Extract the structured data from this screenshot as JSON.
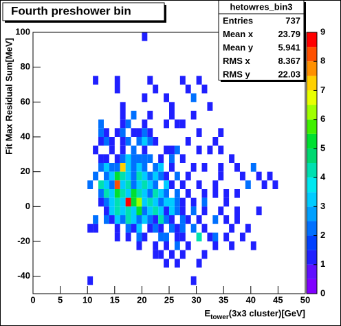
{
  "chart_data": {
    "type": "heatmap",
    "title": "Fourth preshower bin",
    "x_label": {
      "main": "E",
      "sub": "tower",
      "rest": "(3x3 cluster)[GeV]"
    },
    "y_label": "Fit Max Residual Sum[MeV]",
    "xlim": [
      0,
      50
    ],
    "ylim": [
      -50,
      100
    ],
    "zlim": [
      0,
      9
    ],
    "xticks": [
      0,
      5,
      10,
      15,
      20,
      25,
      30,
      35,
      40,
      45,
      50
    ],
    "yticks": [
      -40,
      -20,
      0,
      20,
      40,
      60,
      80,
      100
    ],
    "zticks": [
      0,
      1,
      2,
      3,
      4,
      5,
      6,
      7,
      8,
      9
    ],
    "bin_width_x": 1,
    "bin_width_y": 5,
    "palette": [
      "#8000ff",
      "#6010ff",
      "#2020ff",
      "#0040ff",
      "#0070ff",
      "#00a0ff",
      "#00ccff",
      "#00e8f0",
      "#00e0b0",
      "#00d870",
      "#00e030",
      "#40f000",
      "#a0ff00",
      "#e8ff00",
      "#ffd000",
      "#ff9000",
      "#ff5000",
      "#ff0000"
    ],
    "rows": [
      {
        "y": 95,
        "x": [
          20
        ],
        "values": [
          1
        ]
      },
      {
        "y": 70,
        "x": [
          11,
          15,
          21,
          27,
          30
        ],
        "values": [
          1,
          1,
          1,
          1,
          1
        ]
      },
      {
        "y": 65,
        "x": [
          15,
          22,
          28,
          31
        ],
        "values": [
          1,
          1,
          1,
          1
        ]
      },
      {
        "y": 60,
        "x": [
          20,
          24,
          29
        ],
        "values": [
          1,
          1,
          2
        ]
      },
      {
        "y": 55,
        "x": [
          16,
          25,
          32
        ],
        "values": [
          1,
          1,
          1
        ]
      },
      {
        "y": 50,
        "x": [
          16,
          18,
          21,
          25,
          29
        ],
        "values": [
          1,
          2,
          1,
          1,
          1
        ]
      },
      {
        "y": 45,
        "x": [
          12,
          16,
          17,
          20,
          24,
          26,
          27
        ],
        "values": [
          2,
          1,
          2,
          1,
          1,
          1,
          1
        ]
      },
      {
        "y": 40,
        "x": [
          12,
          13,
          15,
          16,
          18,
          19,
          20,
          21,
          30,
          34
        ],
        "values": [
          2,
          1,
          1,
          2,
          1,
          1,
          2,
          1,
          1,
          1
        ]
      },
      {
        "y": 35,
        "x": [
          12,
          13,
          14,
          16,
          17,
          19,
          20,
          21,
          22,
          28,
          33
        ],
        "values": [
          1,
          2,
          1,
          1,
          2,
          2,
          3,
          2,
          1,
          1,
          1
        ]
      },
      {
        "y": 30,
        "x": [
          11,
          14,
          16,
          18,
          20,
          24,
          25,
          26,
          30,
          32,
          34
        ],
        "values": [
          1,
          1,
          1,
          2,
          1,
          1,
          1,
          2,
          1,
          1,
          1
        ]
      },
      {
        "y": 25,
        "x": [
          12,
          13,
          15,
          16,
          17,
          18,
          19,
          20,
          21,
          23,
          25,
          27,
          36
        ],
        "values": [
          1,
          1,
          1,
          2,
          3,
          2,
          2,
          2,
          2,
          1,
          2,
          1,
          1
        ]
      },
      {
        "y": 20,
        "x": [
          12,
          13,
          14,
          15,
          16,
          17,
          18,
          19,
          20,
          22,
          23,
          25,
          29,
          31,
          34,
          37,
          40
        ],
        "values": [
          2,
          3,
          2,
          2,
          7,
          3,
          2,
          3,
          2,
          2,
          3,
          1,
          1,
          1,
          1,
          1,
          2
        ]
      },
      {
        "y": 15,
        "x": [
          11,
          13,
          14,
          15,
          16,
          17,
          18,
          19,
          20,
          21,
          22,
          23,
          24,
          26,
          28,
          34,
          38,
          41,
          43
        ],
        "values": [
          2,
          2,
          3,
          5,
          4,
          3,
          2,
          4,
          3,
          2,
          3,
          2,
          1,
          2,
          1,
          1,
          1,
          1,
          1
        ]
      },
      {
        "y": 10,
        "x": [
          10,
          12,
          13,
          14,
          15,
          16,
          17,
          18,
          19,
          20,
          21,
          22,
          24,
          25,
          27,
          30,
          33,
          39,
          42,
          44
        ],
        "values": [
          2,
          4,
          3,
          2,
          8,
          3,
          4,
          2,
          3,
          4,
          3,
          2,
          3,
          1,
          1,
          1,
          1,
          2,
          1,
          1
        ]
      },
      {
        "y": 5,
        "x": [
          12,
          13,
          14,
          15,
          16,
          17,
          18,
          19,
          20,
          21,
          22,
          23,
          24,
          26,
          28,
          31,
          33,
          35,
          37
        ],
        "values": [
          2,
          4,
          3,
          5,
          4,
          3,
          5,
          4,
          3,
          2,
          4,
          3,
          2,
          2,
          1,
          1,
          1,
          1,
          1
        ]
      },
      {
        "y": 0,
        "x": [
          12,
          13,
          14,
          15,
          16,
          17,
          18,
          19,
          20,
          21,
          22,
          23,
          24,
          25,
          26,
          27,
          29,
          31,
          35
        ],
        "values": [
          1,
          2,
          3,
          4,
          3,
          9,
          5,
          6,
          3,
          4,
          3,
          2,
          3,
          3,
          2,
          1,
          1,
          2,
          1
        ]
      },
      {
        "y": -5,
        "x": [
          13,
          14,
          15,
          16,
          17,
          18,
          19,
          20,
          21,
          22,
          23,
          24,
          25,
          26,
          27,
          29,
          31,
          34,
          37,
          41
        ],
        "values": [
          1,
          3,
          4,
          3,
          4,
          3,
          5,
          2,
          3,
          4,
          3,
          1,
          3,
          2,
          1,
          2,
          1,
          1,
          1,
          1
        ]
      },
      {
        "y": -10,
        "x": [
          11,
          13,
          14,
          15,
          16,
          17,
          18,
          19,
          20,
          21,
          22,
          23,
          24,
          25,
          27,
          28,
          30,
          33,
          35,
          37
        ],
        "values": [
          2,
          2,
          1,
          3,
          2,
          4,
          3,
          2,
          3,
          2,
          1,
          4,
          2,
          1,
          2,
          1,
          1,
          2,
          1,
          1
        ]
      },
      {
        "y": -15,
        "x": [
          10,
          11,
          15,
          17,
          18,
          19,
          21,
          22,
          23,
          25,
          26,
          27,
          29,
          31,
          36,
          39
        ],
        "values": [
          1,
          1,
          1,
          2,
          1,
          3,
          1,
          2,
          1,
          2,
          1,
          2,
          2,
          1,
          1,
          1
        ]
      },
      {
        "y": -20,
        "x": [
          15,
          17,
          19,
          20,
          23,
          24,
          26,
          27,
          30,
          32,
          33,
          35,
          38
        ],
        "values": [
          1,
          1,
          2,
          1,
          2,
          2,
          1,
          1,
          4,
          1,
          2,
          1,
          1
        ]
      },
      {
        "y": -25,
        "x": [
          19,
          22,
          24,
          26,
          28,
          33,
          36,
          40
        ],
        "values": [
          1,
          1,
          1,
          2,
          1,
          1,
          1,
          1
        ]
      },
      {
        "y": -30,
        "x": [
          22,
          23,
          25,
          27,
          31
        ],
        "values": [
          1,
          1,
          1,
          1,
          1
        ]
      },
      {
        "y": -35,
        "x": [
          24,
          26,
          30
        ],
        "values": [
          1,
          1,
          1
        ]
      },
      {
        "y": -45,
        "x": [
          10,
          29
        ],
        "values": [
          1,
          1
        ]
      }
    ],
    "stats": {
      "title": "hetowres_bin3",
      "rows": [
        {
          "label": "Entries",
          "value": 737
        },
        {
          "label": "Mean x",
          "value": 23.79
        },
        {
          "label": "Mean y",
          "value": 5.941
        },
        {
          "label": "RMS x",
          "value": 8.367
        },
        {
          "label": "RMS y",
          "value": 22.03
        }
      ]
    }
  }
}
